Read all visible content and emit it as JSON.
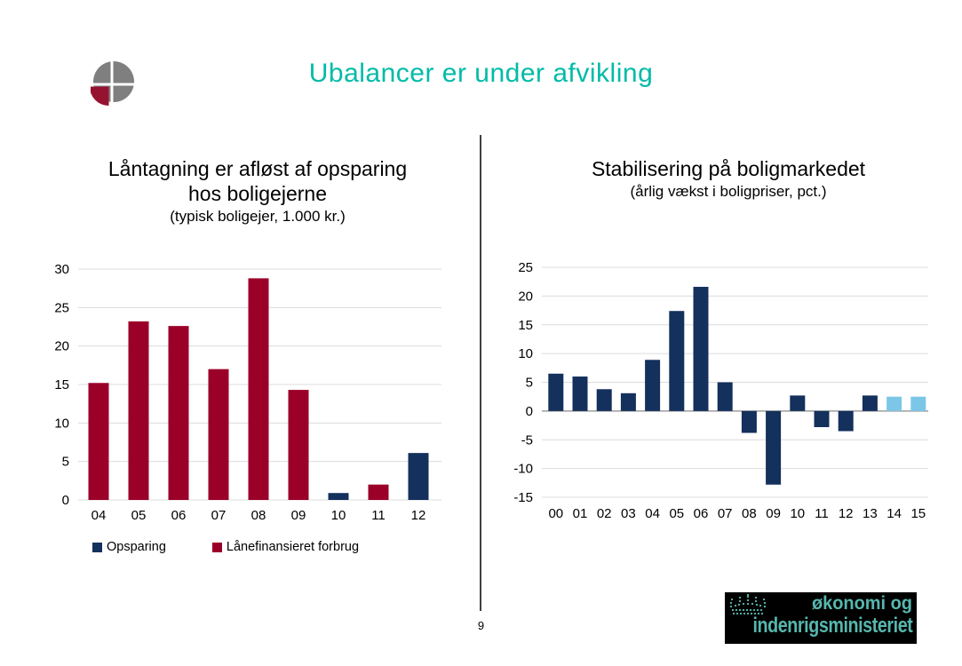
{
  "slide": {
    "title": "Ubalancer er under afvikling",
    "page_number": "9"
  },
  "colors": {
    "title_teal": "#00BBA7",
    "bar_red": "#9B0029",
    "bar_navy": "#14305C",
    "bar_lightblue": "#7CC7E8",
    "gridline": "#DCDCDC",
    "zero_line": "#9E9E9E",
    "divider_gray": "#404040",
    "logo_gray": "#7F7F7F",
    "logo_red": "#96132F",
    "ministry_teal": "#56B7AE",
    "ministry_bg": "#000000"
  },
  "chart_data": [
    {
      "type": "bar",
      "title_line1": "Låntagning er afløst af opsparing",
      "title_line2": "hos boligejerne",
      "subtitle": "(typisk boligejer, 1.000 kr.)",
      "categories": [
        "04",
        "05",
        "06",
        "07",
        "08",
        "09",
        "10",
        "11",
        "12"
      ],
      "values": [
        15.2,
        23.2,
        22.6,
        17.0,
        28.8,
        14.3,
        0.9,
        2.0,
        6.1
      ],
      "bar_colors": [
        "#9B0029",
        "#9B0029",
        "#9B0029",
        "#9B0029",
        "#9B0029",
        "#9B0029",
        "#14305C",
        "#9B0029",
        "#14305C"
      ],
      "yticks": [
        0,
        5,
        10,
        15,
        20,
        25,
        30
      ],
      "ylim": [
        0,
        30
      ],
      "grid": true,
      "legend": [
        {
          "label": "Opsparing",
          "color": "#14305C"
        },
        {
          "label": "Lånefinansieret forbrug",
          "color": "#9B0029"
        }
      ]
    },
    {
      "type": "bar",
      "title": "Stabilisering på boligmarkedet",
      "subtitle": "(årlig vækst i boligpriser, pct.)",
      "categories": [
        "00",
        "01",
        "02",
        "03",
        "04",
        "05",
        "06",
        "07",
        "08",
        "09",
        "10",
        "11",
        "12",
        "13",
        "14",
        "15"
      ],
      "values": [
        6.5,
        6.0,
        3.8,
        3.1,
        8.9,
        17.4,
        21.6,
        5.0,
        -3.8,
        -12.8,
        2.7,
        -2.8,
        -3.5,
        2.7,
        2.5,
        2.5
      ],
      "bar_colors": [
        "#14305C",
        "#14305C",
        "#14305C",
        "#14305C",
        "#14305C",
        "#14305C",
        "#14305C",
        "#14305C",
        "#14305C",
        "#14305C",
        "#14305C",
        "#14305C",
        "#14305C",
        "#14305C",
        "#7CC7E8",
        "#7CC7E8"
      ],
      "yticks": [
        -15,
        -10,
        -5,
        0,
        5,
        10,
        15,
        20,
        25
      ],
      "ylim": [
        -15,
        25
      ],
      "grid": true
    }
  ],
  "ministry_logo": {
    "line1": "økonomi og",
    "line2": "indenrigsministeriet"
  }
}
